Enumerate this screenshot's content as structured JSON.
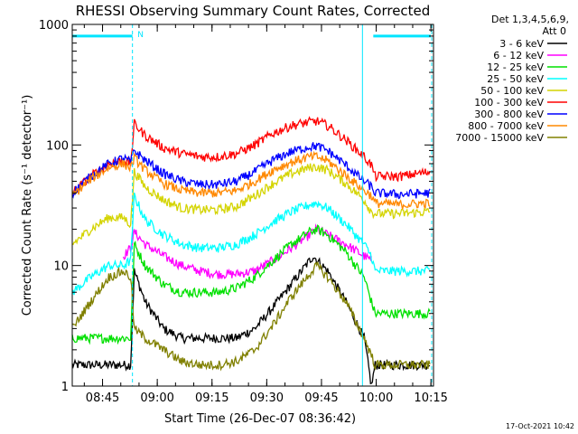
{
  "chart_data": {
    "type": "line",
    "title": "RHESSI Observing Summary Count Rates, Corrected",
    "xlabel": "Start Time (26-Dec-07 08:36:42)",
    "ylabel": "Corrected Count Rate (s⁻¹ detector⁻¹)",
    "x_unit": "minutes after 08:36:42",
    "xlim": [
      0,
      99
    ],
    "ylim": [
      1,
      1000
    ],
    "y_scale": "log",
    "x_ticks": [
      {
        "label": "08:45",
        "minutes": 8.3
      },
      {
        "label": "09:00",
        "minutes": 23.3
      },
      {
        "label": "09:15",
        "minutes": 38.3
      },
      {
        "label": "09:30",
        "minutes": 53.3
      },
      {
        "label": "09:45",
        "minutes": 68.3
      },
      {
        "label": "10:00",
        "minutes": 83.3
      },
      {
        "label": "10:15",
        "minutes": 98.3
      }
    ],
    "y_ticks": [
      {
        "label": "1",
        "value": 1
      },
      {
        "label": "10",
        "value": 10
      },
      {
        "label": "100",
        "value": 100
      },
      {
        "label": "1000",
        "value": 1000
      }
    ],
    "legend_header": [
      "Det 1,3,4,5,6,9,",
      "Att 0"
    ],
    "legend_placement": "right",
    "night_flag": {
      "label": "N",
      "start_min": 16.5,
      "end_min": 82.5,
      "level": 800,
      "color": "#00e5ff"
    },
    "series": [
      {
        "name": "3 - 6 keV",
        "color": "#000000",
        "x": [
          0,
          5,
          10,
          14,
          16,
          17,
          20,
          25,
          30,
          35,
          40,
          45,
          50,
          55,
          60,
          64,
          66,
          70,
          75,
          80,
          82,
          83,
          90,
          98
        ],
        "values": [
          1.5,
          1.5,
          1.5,
          1.5,
          1.5,
          9,
          5,
          3,
          2.5,
          2.5,
          2.5,
          2.5,
          3,
          4.5,
          7,
          10,
          12,
          9,
          5,
          2.5,
          1,
          1.5,
          1.5,
          1.5
        ]
      },
      {
        "name": "6 - 12 keV",
        "color": "#ff00ff",
        "x": [
          14,
          16,
          17,
          20,
          25,
          30,
          35,
          40,
          45,
          50,
          55,
          60,
          65,
          67,
          70,
          75,
          80,
          82
        ],
        "values": [
          12,
          14,
          19,
          15,
          12,
          10,
          9,
          8.5,
          8.5,
          9,
          11,
          14,
          18,
          20,
          18,
          15,
          12,
          11
        ]
      },
      {
        "name": "12 - 25 keV",
        "color": "#00e000",
        "x": [
          0,
          5,
          10,
          14,
          16,
          17,
          20,
          25,
          30,
          35,
          40,
          45,
          50,
          55,
          60,
          65,
          67,
          70,
          75,
          80,
          82,
          83,
          90,
          98
        ],
        "values": [
          2.5,
          2.5,
          2.5,
          2.5,
          2.5,
          15,
          10,
          7,
          6,
          6,
          6,
          6.5,
          8,
          11,
          15,
          19,
          20,
          18,
          13,
          8,
          5,
          4,
          4,
          4
        ]
      },
      {
        "name": "25 - 50 keV",
        "color": "#00ffff",
        "x": [
          0,
          5,
          10,
          14,
          16,
          17,
          20,
          25,
          30,
          35,
          40,
          45,
          50,
          55,
          60,
          65,
          67,
          70,
          75,
          80,
          82,
          83,
          90,
          98
        ],
        "values": [
          6,
          8,
          10,
          10,
          11,
          38,
          24,
          18,
          15,
          14,
          14,
          15,
          18,
          23,
          28,
          32,
          33,
          30,
          22,
          15,
          12,
          9,
          9,
          9
        ]
      },
      {
        "name": "50 - 100 keV",
        "color": "#d4d400",
        "x": [
          0,
          5,
          10,
          14,
          16,
          17,
          20,
          25,
          30,
          35,
          40,
          45,
          50,
          55,
          60,
          65,
          67,
          70,
          75,
          80,
          82,
          83,
          90,
          98
        ],
        "values": [
          15,
          20,
          25,
          25,
          22,
          60,
          45,
          35,
          30,
          29,
          29,
          31,
          38,
          48,
          58,
          65,
          66,
          62,
          48,
          35,
          28,
          27,
          27,
          28
        ]
      },
      {
        "name": "100 - 300 keV",
        "color": "#ff0000",
        "x": [
          0,
          5,
          10,
          14,
          16,
          17,
          20,
          25,
          30,
          35,
          40,
          45,
          50,
          55,
          60,
          65,
          67,
          70,
          75,
          80,
          82,
          83,
          90,
          98
        ],
        "values": [
          40,
          55,
          70,
          75,
          70,
          150,
          120,
          95,
          85,
          80,
          80,
          85,
          100,
          125,
          145,
          155,
          158,
          145,
          110,
          80,
          68,
          55,
          55,
          60
        ]
      },
      {
        "name": "300 - 800 keV",
        "color": "#0000ff",
        "x": [
          0,
          5,
          10,
          14,
          16,
          17,
          20,
          25,
          30,
          35,
          40,
          45,
          50,
          55,
          60,
          65,
          67,
          70,
          75,
          80,
          82,
          83,
          90,
          98
        ],
        "values": [
          40,
          55,
          70,
          78,
          72,
          90,
          75,
          58,
          50,
          47,
          47,
          50,
          60,
          75,
          88,
          97,
          98,
          90,
          68,
          50,
          45,
          40,
          39,
          40
        ]
      },
      {
        "name": "800 - 7000 keV",
        "color": "#ff8800",
        "x": [
          0,
          5,
          10,
          14,
          16,
          17,
          20,
          25,
          30,
          35,
          40,
          45,
          50,
          55,
          60,
          65,
          67,
          70,
          75,
          80,
          82,
          83,
          90,
          98
        ],
        "values": [
          38,
          52,
          65,
          70,
          65,
          78,
          62,
          48,
          42,
          40,
          40,
          42,
          50,
          62,
          72,
          80,
          80,
          74,
          56,
          42,
          38,
          33,
          32,
          33
        ]
      },
      {
        "name": "7000 - 15000 keV",
        "color": "#808000",
        "x": [
          0,
          5,
          10,
          14,
          16,
          17,
          20,
          25,
          30,
          35,
          40,
          45,
          50,
          55,
          60,
          65,
          67,
          70,
          75,
          80,
          82,
          83,
          90,
          98
        ],
        "values": [
          3,
          5,
          8,
          9,
          8,
          3,
          2.5,
          2,
          1.6,
          1.5,
          1.5,
          1.6,
          2,
          3.2,
          5.5,
          8.5,
          10,
          8,
          5,
          2.5,
          1.8,
          1.5,
          1.5,
          1.5
        ]
      }
    ]
  },
  "footer_date": "17-Oct-2021 10:42"
}
